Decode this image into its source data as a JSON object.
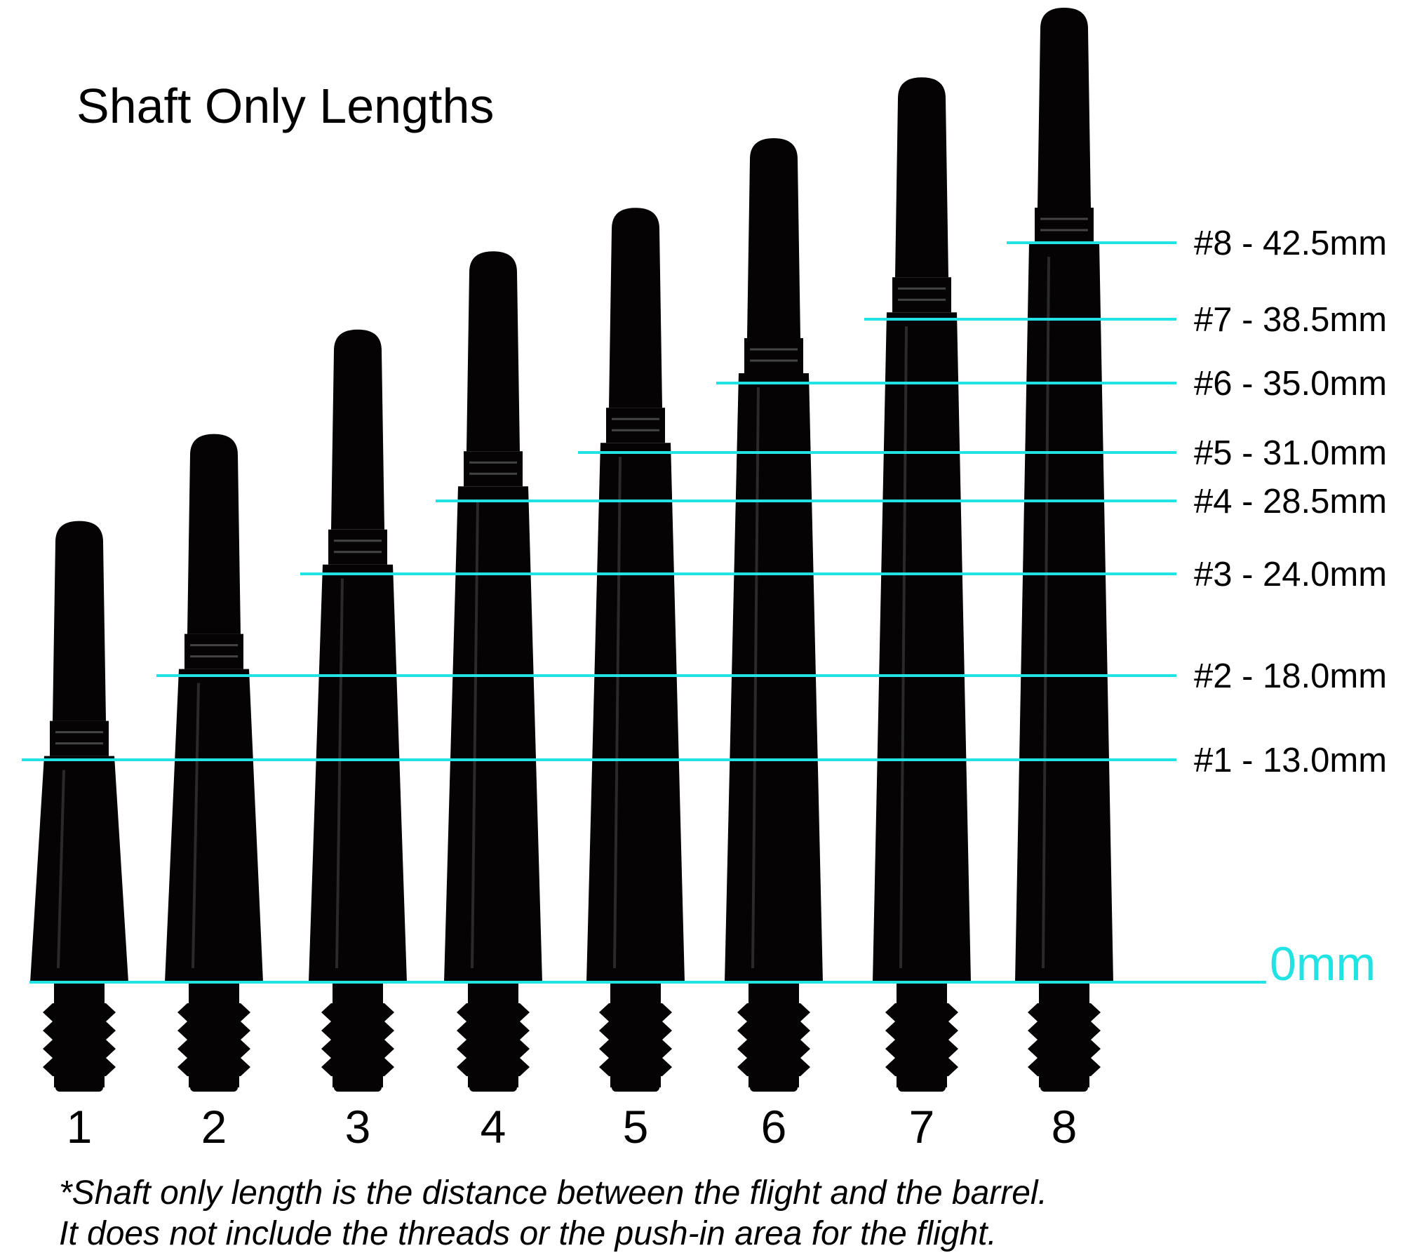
{
  "title": "Shaft Only Lengths",
  "zero_label": "0mm",
  "accent_color": "#22e3e3",
  "shaft_color": "#050303",
  "shafts": [
    {
      "number": "1",
      "length_mm": 13.0,
      "label": "#1 - 13.0mm"
    },
    {
      "number": "2",
      "length_mm": 18.0,
      "label": "#2 - 18.0mm"
    },
    {
      "number": "3",
      "length_mm": 24.0,
      "label": "#3 - 24.0mm"
    },
    {
      "number": "4",
      "length_mm": 28.5,
      "label": "#4 - 28.5mm"
    },
    {
      "number": "5",
      "length_mm": 31.0,
      "label": "#5 - 31.0mm"
    },
    {
      "number": "6",
      "length_mm": 35.0,
      "label": "#6 - 35.0mm"
    },
    {
      "number": "7",
      "length_mm": 38.5,
      "label": "#7 - 38.5mm"
    },
    {
      "number": "8",
      "length_mm": 42.5,
      "label": "#8 - 42.5mm"
    }
  ],
  "footnote": {
    "line1": "*Shaft only length is the distance between the flight and the barrel.",
    "line2": "It does not include the threads or the push-in area for the flight."
  }
}
